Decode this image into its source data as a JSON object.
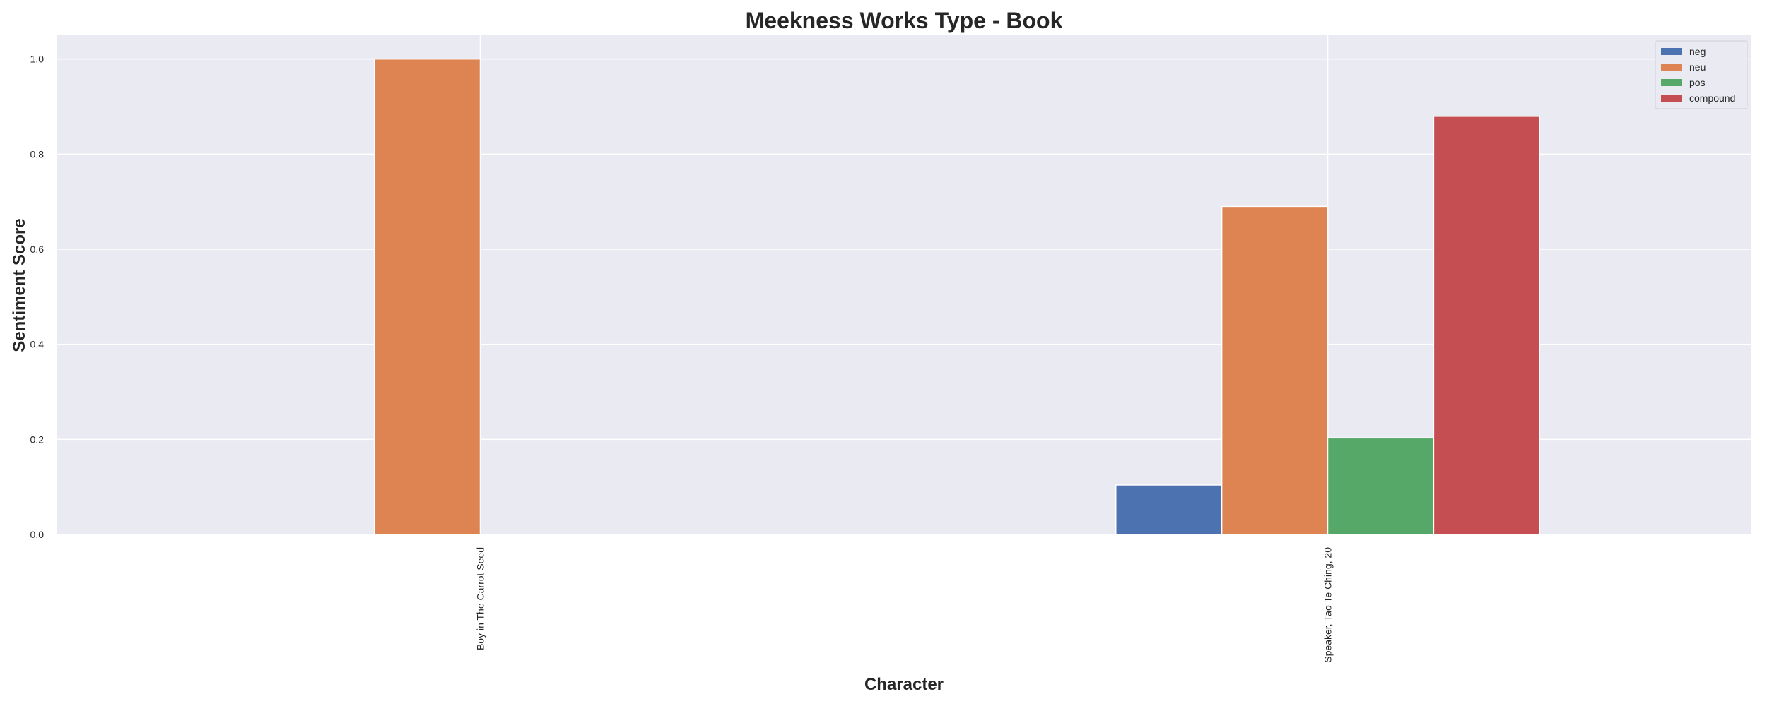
{
  "chart_data": {
    "type": "bar",
    "title": "Meekness Works Type - Book",
    "xlabel": "Character",
    "ylabel": "Sentiment Score",
    "categories": [
      "Boy in The Carrot Seed",
      "Speaker, Tao Te Ching, 20"
    ],
    "series": [
      {
        "name": "neg",
        "color": "#4c72b0",
        "values": [
          0.0,
          0.104
        ]
      },
      {
        "name": "neu",
        "color": "#dd8452",
        "values": [
          1.0,
          0.69
        ]
      },
      {
        "name": "pos",
        "color": "#55a868",
        "values": [
          0.0,
          0.203
        ]
      },
      {
        "name": "compound",
        "color": "#c44e52",
        "values": [
          0.0,
          0.8795
        ]
      }
    ],
    "ylim": [
      0.0,
      1.05
    ],
    "yticks": [
      "0.0",
      "0.2",
      "0.4",
      "0.6",
      "0.8",
      "1.0"
    ],
    "grid": true,
    "legend_position": "top-right",
    "colors": {
      "plot_background": "#eaeaf2",
      "grid": "#ffffff",
      "text": "#262626"
    }
  }
}
